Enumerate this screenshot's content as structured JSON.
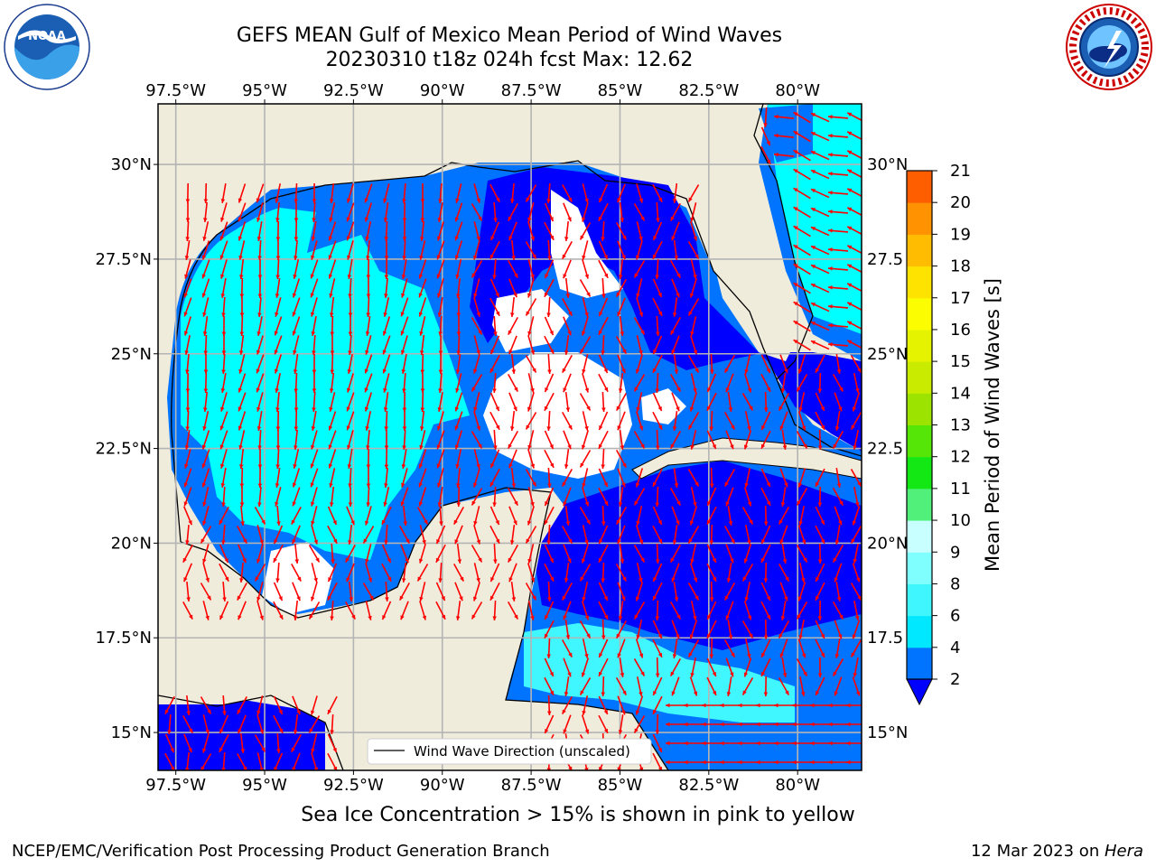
{
  "title": {
    "line1": "GEFS MEAN Gulf of Mexico Mean Period of Wind Waves",
    "line2": "20230310 t18z 024h fcst   Max: 12.62"
  },
  "axes": {
    "lon_ticks": [
      "97.5°W",
      "95°W",
      "92.5°W",
      "90°W",
      "87.5°W",
      "85°W",
      "82.5°W",
      "80°W"
    ],
    "lat_ticks_left": [
      "30°N",
      "27.5°N",
      "25°N",
      "22.5°N",
      "20°N",
      "17.5°N",
      "15°N"
    ],
    "lat_ticks_right": [
      "30°N",
      "27.5",
      "25°N",
      "22.5",
      "20°N",
      "17.5",
      "15°N"
    ],
    "lon_range": [
      -98,
      -78.2
    ],
    "lat_range": [
      14,
      31.6
    ]
  },
  "legend": {
    "label": "Wind Wave Direction (unscaled)"
  },
  "colorbar": {
    "label": "Mean Period of Wind Waves [s]",
    "ticks": [
      "2",
      "4",
      "6",
      "8",
      "9",
      "10",
      "11",
      "12",
      "13",
      "14",
      "15",
      "16",
      "17",
      "18",
      "19",
      "20",
      "21"
    ],
    "colors": [
      "#0073ff",
      "#00e8ff",
      "#3ff6ff",
      "#80ffff",
      "#c8ffff",
      "#50f07a",
      "#14e814",
      "#55e608",
      "#9ce400",
      "#c8eb00",
      "#e6f300",
      "#fbfd00",
      "#ffe300",
      "#ffbc00",
      "#ff9200",
      "#ff5e00",
      "#ff2b00",
      "#ff0000"
    ],
    "extend_color": "#0000ff"
  },
  "colors": {
    "land": "#efecdc",
    "ocean_low": "#0000ff",
    "ocean_mid": "#0073ff",
    "ocean_cyan": "#00ffff",
    "ocean_light": "#40f7ff",
    "arrow": "#ff0000",
    "grid": "#b4b4b4"
  },
  "footer": {
    "ice_note": "Sea Ice Concentration > 15% is shown in pink to yellow",
    "credit": "NCEP/EMC/Verification Post Processing Product Generation Branch",
    "date_prefix": "12 Mar 2023 on ",
    "date_host": "Hera"
  },
  "logos": {
    "left": "noaa-logo",
    "right": "nws-logo",
    "left_text": "NOAA"
  }
}
